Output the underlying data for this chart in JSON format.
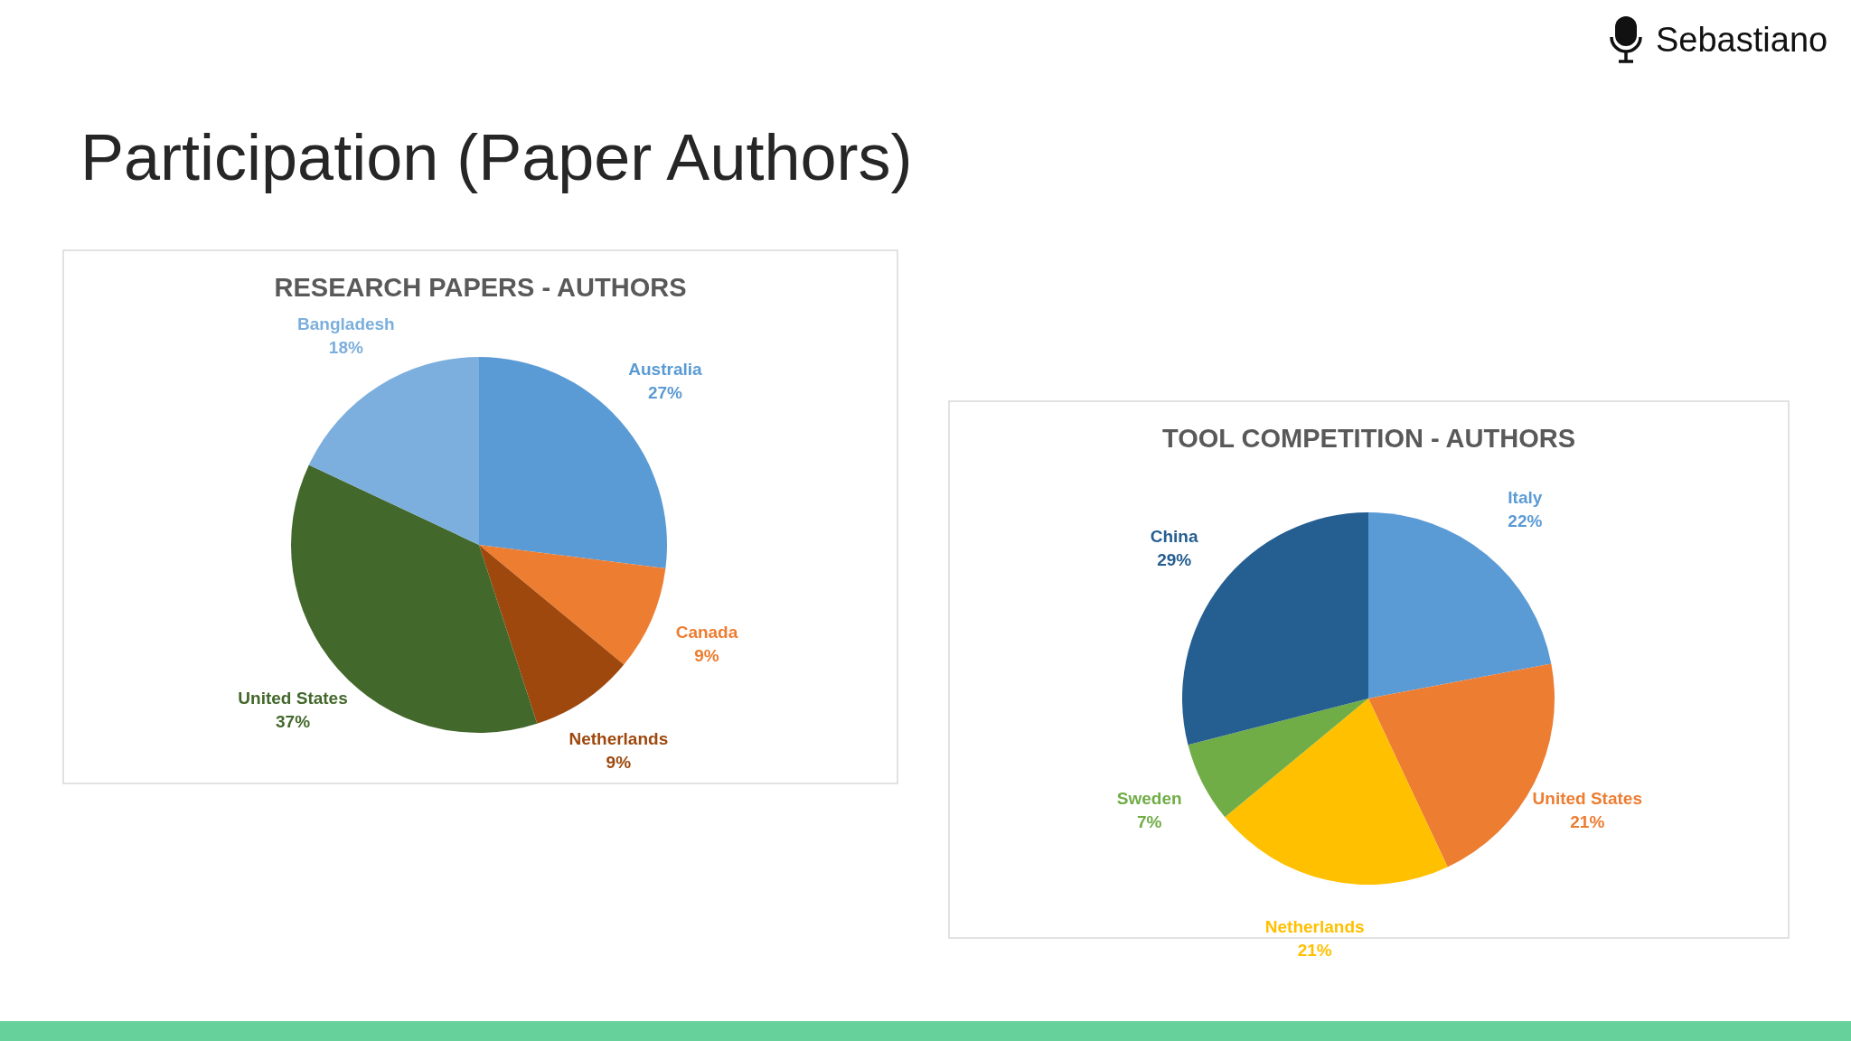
{
  "chart_data": [
    {
      "type": "pie",
      "title": "RESEARCH PAPERS - AUTHORS",
      "categories": [
        "Australia",
        "Canada",
        "Netherlands",
        "United States",
        "Bangladesh"
      ],
      "values": [
        27,
        9,
        9,
        37,
        18
      ],
      "colors": [
        "#5b9bd5",
        "#ed7d31",
        "#9e480e",
        "#43682b",
        "#7cafdd"
      ],
      "value_labels": [
        "27%",
        "9%",
        "9%",
        "37%",
        "18%"
      ],
      "annotations": [
        "Participation (Paper Authors)",
        "Sebastiano"
      ]
    },
    {
      "type": "pie",
      "title": "TOOL COMPETITION - AUTHORS",
      "categories": [
        "Italy",
        "United States",
        "Netherlands",
        "Sweden",
        "China"
      ],
      "values": [
        22,
        21,
        21,
        7,
        29
      ],
      "colors": [
        "#5b9bd5",
        "#ed7d31",
        "#ffc000",
        "#70ad47",
        "#255e91"
      ],
      "value_labels": [
        "22%",
        "21%",
        "21%",
        "7%",
        "29%"
      ]
    }
  ]
}
